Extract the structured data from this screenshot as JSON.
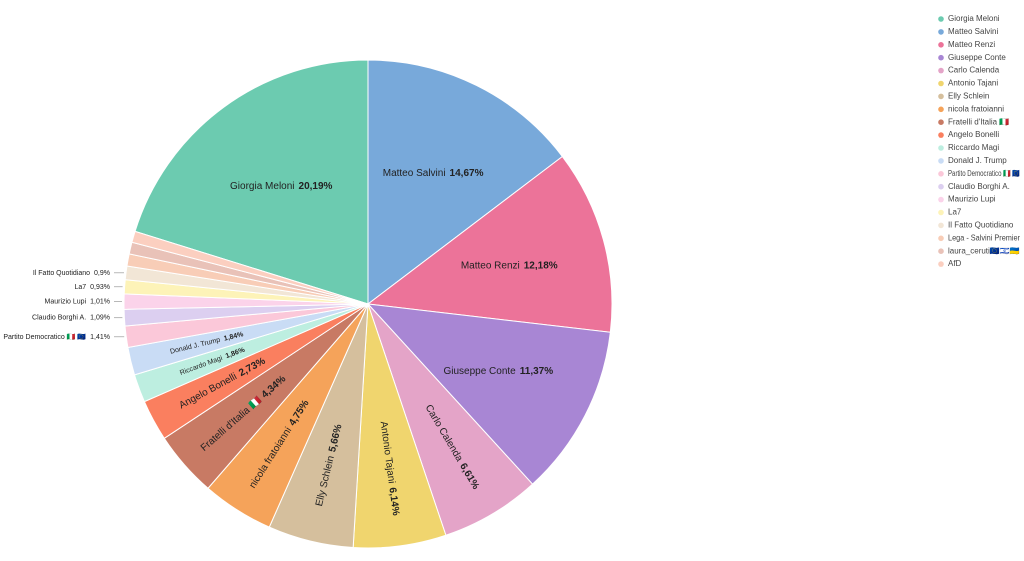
{
  "chart_data": {
    "type": "pie",
    "categories": [
      "Giorgia Meloni",
      "Matteo Salvini",
      "Matteo Renzi",
      "Giuseppe Conte",
      "Carlo Calenda",
      "Antonio Tajani",
      "Elly Schlein",
      "nicola fratoianni",
      "Fratelli d'Italia 🇮🇹",
      "Angelo Bonelli",
      "Riccardo Magi",
      "Donald J. Trump",
      "Partito Democratico 🇮🇹 🇪🇺",
      "Claudio Borghi A.",
      "Maurizio Lupi",
      "La7",
      "Il Fatto Quotidiano",
      "Lega - Salvini Premier",
      "laura_ceruti🇪🇺🇮🇱🇺🇦",
      "AfD"
    ],
    "values": [
      20.19,
      14.67,
      12.18,
      11.37,
      6.61,
      6.14,
      5.66,
      4.75,
      4.34,
      2.73,
      1.86,
      1.84,
      1.41,
      1.09,
      1.01,
      0.93,
      0.9,
      0.8,
      0.78,
      0.74
    ],
    "value_labels": [
      "20,19%",
      "14,67%",
      "12,18%",
      "11,37%",
      "6,61%",
      "6,14%",
      "5,66%",
      "4,75%",
      "4,34%",
      "2,73%",
      "1,86%",
      "1,84%",
      "1,41%",
      "1,09%",
      "1,01%",
      "0,93%",
      "0,9%",
      null,
      null,
      null
    ],
    "colors": [
      "#6ccbb0",
      "#78a9da",
      "#ec7399",
      "#a886d4",
      "#e4a4c8",
      "#f0d56e",
      "#d5bf9d",
      "#f5a35a",
      "#c87a64",
      "#fa7f5f",
      "#bdeee0",
      "#c9dcf5",
      "#fbc8d9",
      "#dccff0",
      "#fbd3ea",
      "#fdf3b8",
      "#f2e6d6",
      "#f8cdb7",
      "#e9c2b8",
      "#fbcfc0"
    ],
    "legend": "top-right"
  }
}
